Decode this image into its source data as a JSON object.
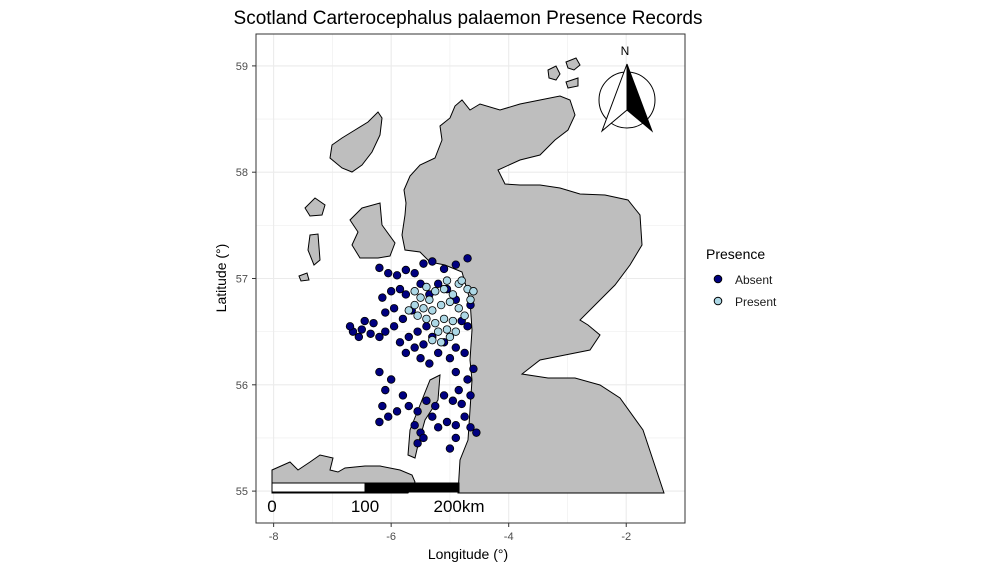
{
  "chart_data": {
    "type": "scatter",
    "title": "Scotland Carterocephalus palaemon Presence Records",
    "xlabel": "Longitude (°)",
    "ylabel": "Latitude (°)",
    "xlim": [
      -8.3,
      -1.0
    ],
    "ylim": [
      54.7,
      59.3
    ],
    "x_ticks": [
      -8,
      -6,
      -4,
      -2
    ],
    "x_tick_labels": [
      "-8",
      "-6",
      "-4",
      "-2"
    ],
    "y_ticks": [
      55,
      56,
      57,
      58,
      59
    ],
    "y_tick_labels": [
      "55",
      "56",
      "57",
      "58",
      "59"
    ],
    "grid": true,
    "legend": {
      "title": "Presence",
      "position": "right",
      "entries": [
        {
          "label": "Absent",
          "color": "#000080"
        },
        {
          "label": "Present",
          "color": "#add8e6"
        }
      ]
    },
    "series": [
      {
        "name": "Absent",
        "color": "#000080",
        "points": [
          [
            -4.7,
            57.19
          ],
          [
            -4.9,
            57.13
          ],
          [
            -5.1,
            57.09
          ],
          [
            -5.3,
            57.16
          ],
          [
            -5.45,
            57.14
          ],
          [
            -5.6,
            57.05
          ],
          [
            -5.75,
            57.08
          ],
          [
            -5.9,
            57.03
          ],
          [
            -6.05,
            57.05
          ],
          [
            -6.2,
            57.1
          ],
          [
            -5.85,
            56.9
          ],
          [
            -6.0,
            56.88
          ],
          [
            -6.15,
            56.82
          ],
          [
            -5.95,
            56.72
          ],
          [
            -6.1,
            56.68
          ],
          [
            -5.8,
            56.62
          ],
          [
            -5.95,
            56.55
          ],
          [
            -6.1,
            56.5
          ],
          [
            -6.2,
            56.45
          ],
          [
            -6.35,
            56.48
          ],
          [
            -6.5,
            56.52
          ],
          [
            -6.65,
            56.5
          ],
          [
            -6.7,
            56.55
          ],
          [
            -6.45,
            56.6
          ],
          [
            -5.7,
            56.45
          ],
          [
            -5.55,
            56.5
          ],
          [
            -5.4,
            56.55
          ],
          [
            -5.3,
            56.45
          ],
          [
            -5.45,
            56.38
          ],
          [
            -5.6,
            56.35
          ],
          [
            -5.75,
            56.3
          ],
          [
            -5.85,
            56.4
          ],
          [
            -5.5,
            56.25
          ],
          [
            -5.35,
            56.2
          ],
          [
            -5.2,
            56.3
          ],
          [
            -5.1,
            56.4
          ],
          [
            -5.0,
            56.25
          ],
          [
            -4.9,
            56.12
          ],
          [
            -4.85,
            55.95
          ],
          [
            -4.95,
            55.85
          ],
          [
            -5.1,
            55.9
          ],
          [
            -5.25,
            55.8
          ],
          [
            -5.4,
            55.85
          ],
          [
            -5.55,
            55.75
          ],
          [
            -5.7,
            55.8
          ],
          [
            -5.8,
            55.9
          ],
          [
            -5.9,
            55.75
          ],
          [
            -6.05,
            55.7
          ],
          [
            -6.15,
            55.8
          ],
          [
            -6.2,
            55.65
          ],
          [
            -6.1,
            55.95
          ],
          [
            -6.0,
            56.05
          ],
          [
            -6.2,
            56.12
          ],
          [
            -5.6,
            55.62
          ],
          [
            -5.5,
            55.55
          ],
          [
            -5.55,
            55.45
          ],
          [
            -5.45,
            55.5
          ],
          [
            -5.2,
            55.6
          ],
          [
            -5.05,
            55.65
          ],
          [
            -4.9,
            55.62
          ],
          [
            -4.75,
            55.7
          ],
          [
            -4.8,
            55.82
          ],
          [
            -4.65,
            55.9
          ],
          [
            -4.7,
            56.05
          ],
          [
            -4.6,
            56.15
          ],
          [
            -4.75,
            56.3
          ],
          [
            -4.9,
            56.35
          ],
          [
            -4.7,
            56.55
          ],
          [
            -4.8,
            56.6
          ],
          [
            -4.65,
            56.75
          ],
          [
            -4.9,
            56.8
          ],
          [
            -5.05,
            56.9
          ],
          [
            -5.2,
            56.95
          ],
          [
            -5.35,
            56.85
          ],
          [
            -5.5,
            56.95
          ],
          [
            -4.55,
            55.55
          ],
          [
            -4.65,
            55.6
          ],
          [
            -4.9,
            55.5
          ],
          [
            -5.0,
            55.4
          ],
          [
            -5.3,
            55.7
          ],
          [
            -5.65,
            56.7
          ],
          [
            -5.75,
            56.85
          ],
          [
            -6.3,
            56.58
          ],
          [
            -6.55,
            56.45
          ]
        ]
      },
      {
        "name": "Present",
        "color": "#add8e6",
        "points": [
          [
            -4.85,
            56.95
          ],
          [
            -4.7,
            56.9
          ],
          [
            -4.95,
            56.85
          ],
          [
            -5.1,
            56.9
          ],
          [
            -5.25,
            56.88
          ],
          [
            -5.35,
            56.8
          ],
          [
            -5.5,
            56.82
          ],
          [
            -5.6,
            56.75
          ],
          [
            -5.45,
            56.72
          ],
          [
            -5.3,
            56.7
          ],
          [
            -5.15,
            56.75
          ],
          [
            -5.0,
            56.78
          ],
          [
            -4.85,
            56.72
          ],
          [
            -4.75,
            56.65
          ],
          [
            -4.95,
            56.6
          ],
          [
            -5.1,
            56.62
          ],
          [
            -5.25,
            56.58
          ],
          [
            -5.4,
            56.62
          ],
          [
            -5.55,
            56.65
          ],
          [
            -5.7,
            56.7
          ],
          [
            -5.2,
            56.5
          ],
          [
            -5.05,
            56.52
          ],
          [
            -4.9,
            56.5
          ],
          [
            -5.3,
            56.42
          ],
          [
            -5.15,
            56.4
          ],
          [
            -5.0,
            56.45
          ],
          [
            -4.6,
            56.88
          ],
          [
            -4.8,
            56.98
          ],
          [
            -5.05,
            56.98
          ],
          [
            -5.4,
            56.92
          ],
          [
            -4.65,
            56.8
          ],
          [
            -5.6,
            56.88
          ]
        ]
      }
    ]
  },
  "map": {
    "land_color": "#bebebe",
    "land_stroke": "#000000"
  },
  "scale_bar": {
    "labels": [
      "0",
      "100",
      "200km"
    ]
  },
  "north_arrow": {
    "label": "N"
  },
  "colors": {
    "panel_border": "#333333",
    "grid": "#ebebeb"
  }
}
